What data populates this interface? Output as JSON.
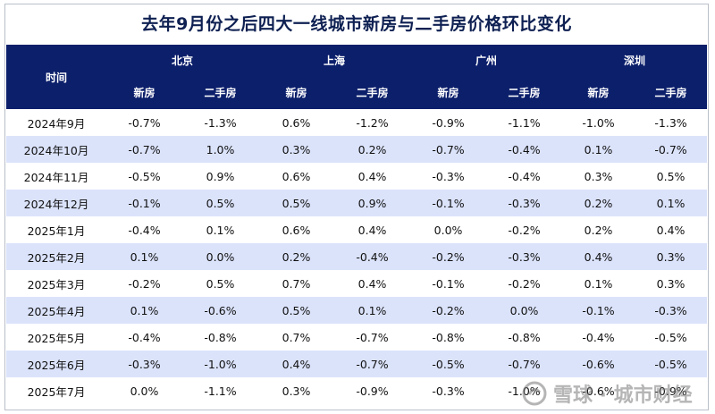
{
  "title": "去年9月份之后四大一线城市新房与二手房价格环比变化",
  "header": {
    "time_label": "时间",
    "cities": [
      "北京",
      "上海",
      "广州",
      "深圳"
    ],
    "sub_new": "新房",
    "sub_second": "二手房"
  },
  "rows": [
    {
      "date": "2024年9月",
      "vals": [
        "-0.7%",
        "-1.3%",
        "0.6%",
        "-1.2%",
        "-0.9%",
        "-1.1%",
        "-1.0%",
        "-1.3%"
      ]
    },
    {
      "date": "2024年10月",
      "vals": [
        "-0.7%",
        "1.0%",
        "0.3%",
        "0.2%",
        "-0.7%",
        "-0.4%",
        "0.1%",
        "-0.7%"
      ]
    },
    {
      "date": "2024年11月",
      "vals": [
        "-0.5%",
        "0.9%",
        "0.6%",
        "0.4%",
        "-0.3%",
        "-0.4%",
        "0.3%",
        "0.5%"
      ]
    },
    {
      "date": "2024年12月",
      "vals": [
        "-0.1%",
        "0.5%",
        "0.5%",
        "0.9%",
        "-0.1%",
        "-0.3%",
        "0.2%",
        "0.1%"
      ]
    },
    {
      "date": "2025年1月",
      "vals": [
        "-0.4%",
        "0.1%",
        "0.6%",
        "0.4%",
        "0.0%",
        "-0.2%",
        "0.2%",
        "0.4%"
      ]
    },
    {
      "date": "2025年2月",
      "vals": [
        "0.1%",
        "0.0%",
        "0.2%",
        "-0.4%",
        "-0.2%",
        "-0.3%",
        "0.4%",
        "0.3%"
      ]
    },
    {
      "date": "2025年3月",
      "vals": [
        "-0.2%",
        "0.5%",
        "0.7%",
        "0.4%",
        "-0.1%",
        "-0.2%",
        "0.1%",
        "0.3%"
      ]
    },
    {
      "date": "2025年4月",
      "vals": [
        "0.1%",
        "-0.6%",
        "0.5%",
        "0.1%",
        "-0.2%",
        "0.0%",
        "-0.1%",
        "-0.3%"
      ]
    },
    {
      "date": "2025年5月",
      "vals": [
        "-0.4%",
        "-0.8%",
        "0.7%",
        "-0.7%",
        "-0.8%",
        "-0.8%",
        "-0.4%",
        "-0.5%"
      ]
    },
    {
      "date": "2025年6月",
      "vals": [
        "-0.3%",
        "-1.0%",
        "0.4%",
        "-0.7%",
        "-0.5%",
        "-0.7%",
        "-0.6%",
        "-0.5%"
      ]
    },
    {
      "date": "2025年7月",
      "vals": [
        "0.0%",
        "-1.1%",
        "0.3%",
        "-0.9%",
        "-0.3%",
        "-1.0%",
        "-0.6%",
        "-0.9%"
      ]
    }
  ],
  "watermark": {
    "text": "雪球 · 城市财经",
    "icon": "snowball-logo-icon"
  },
  "colors": {
    "header_bg": "#0c1f6b",
    "band": "#dbe3fb",
    "title": "#0e2052"
  }
}
